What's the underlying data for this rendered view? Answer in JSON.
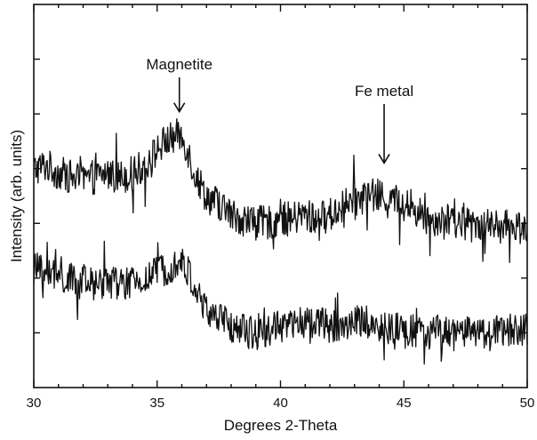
{
  "chart_data": {
    "type": "line",
    "title": "",
    "xlabel": "Degrees 2-Theta",
    "ylabel": "Intensity (arb. units)",
    "xlim": [
      30,
      50
    ],
    "ylim": [
      0,
      1
    ],
    "x_ticks": [
      "30",
      "35",
      "40",
      "45",
      "50"
    ],
    "x_minor_step": 1,
    "y_ticks_count": 6,
    "y_tick_labels_shown": false,
    "grid": false,
    "legend": "none",
    "annotations": [
      {
        "text": "Magnetite",
        "x": 35.9
      },
      {
        "text": "Fe metal",
        "x": 44.2
      }
    ],
    "series": [
      {
        "x": [
          30,
          30.5,
          31,
          31.5,
          32,
          32.5,
          33,
          33.5,
          34,
          34.5,
          35,
          35.3,
          35.6,
          35.9,
          36.2,
          36.5,
          37,
          37.5,
          38,
          38.5,
          39,
          39.5,
          40,
          40.5,
          41,
          41.5,
          42,
          42.5,
          43,
          43.5,
          44,
          44.5,
          45,
          45.5,
          46,
          46.5,
          47,
          47.5,
          48,
          48.5,
          49,
          49.5,
          50
        ],
        "y": [
          0.57,
          0.58,
          0.56,
          0.55,
          0.54,
          0.55,
          0.56,
          0.55,
          0.56,
          0.58,
          0.62,
          0.64,
          0.65,
          0.66,
          0.63,
          0.56,
          0.5,
          0.48,
          0.45,
          0.44,
          0.43,
          0.43,
          0.44,
          0.44,
          0.45,
          0.44,
          0.45,
          0.47,
          0.49,
          0.5,
          0.5,
          0.49,
          0.48,
          0.46,
          0.44,
          0.44,
          0.43,
          0.43,
          0.43,
          0.42,
          0.42,
          0.42,
          0.42
        ]
      },
      {
        "x": [
          30,
          30.5,
          31,
          31.5,
          32,
          32.5,
          33,
          33.5,
          34,
          34.5,
          35,
          35.3,
          35.6,
          35.9,
          36.2,
          36.5,
          37,
          37.5,
          38,
          38.5,
          39,
          39.5,
          40,
          40.5,
          41,
          41.5,
          42,
          42.5,
          43,
          43.5,
          44,
          44.5,
          45,
          45.5,
          46,
          46.5,
          47,
          47.5,
          48,
          48.5,
          49,
          49.5,
          50
        ],
        "y": [
          0.31,
          0.3,
          0.29,
          0.28,
          0.27,
          0.27,
          0.28,
          0.27,
          0.27,
          0.28,
          0.3,
          0.31,
          0.32,
          0.33,
          0.31,
          0.26,
          0.2,
          0.18,
          0.16,
          0.15,
          0.14,
          0.15,
          0.16,
          0.16,
          0.17,
          0.17,
          0.16,
          0.16,
          0.17,
          0.17,
          0.16,
          0.15,
          0.15,
          0.15,
          0.14,
          0.14,
          0.14,
          0.14,
          0.14,
          0.14,
          0.15,
          0.15,
          0.15
        ]
      }
    ]
  }
}
